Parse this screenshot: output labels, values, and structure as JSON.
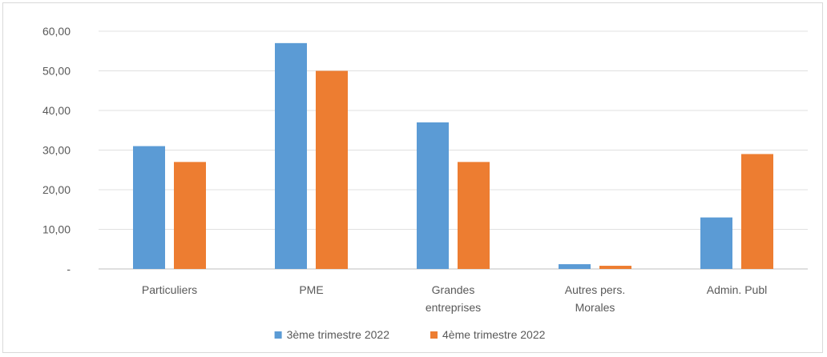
{
  "chart_data": {
    "type": "bar",
    "categories": [
      [
        "Particuliers"
      ],
      [
        "PME"
      ],
      [
        "Grandes",
        "entreprises"
      ],
      [
        "Autres pers.",
        "Morales"
      ],
      [
        "Admin. Publ"
      ]
    ],
    "series": [
      {
        "name": "3ème trimestre 2022",
        "color": "#5B9BD5",
        "values": [
          31.0,
          57.0,
          37.0,
          1.2,
          13.0
        ]
      },
      {
        "name": "4ème trimestre 2022",
        "color": "#ED7D31",
        "values": [
          27.0,
          50.0,
          27.0,
          0.8,
          29.0
        ]
      }
    ],
    "y_ticks": [
      "-",
      "10,00",
      "20,00",
      "30,00",
      "40,00",
      "50,00",
      "60,00"
    ],
    "ylim": [
      0,
      60
    ],
    "grid": true,
    "legend": "bottom"
  }
}
